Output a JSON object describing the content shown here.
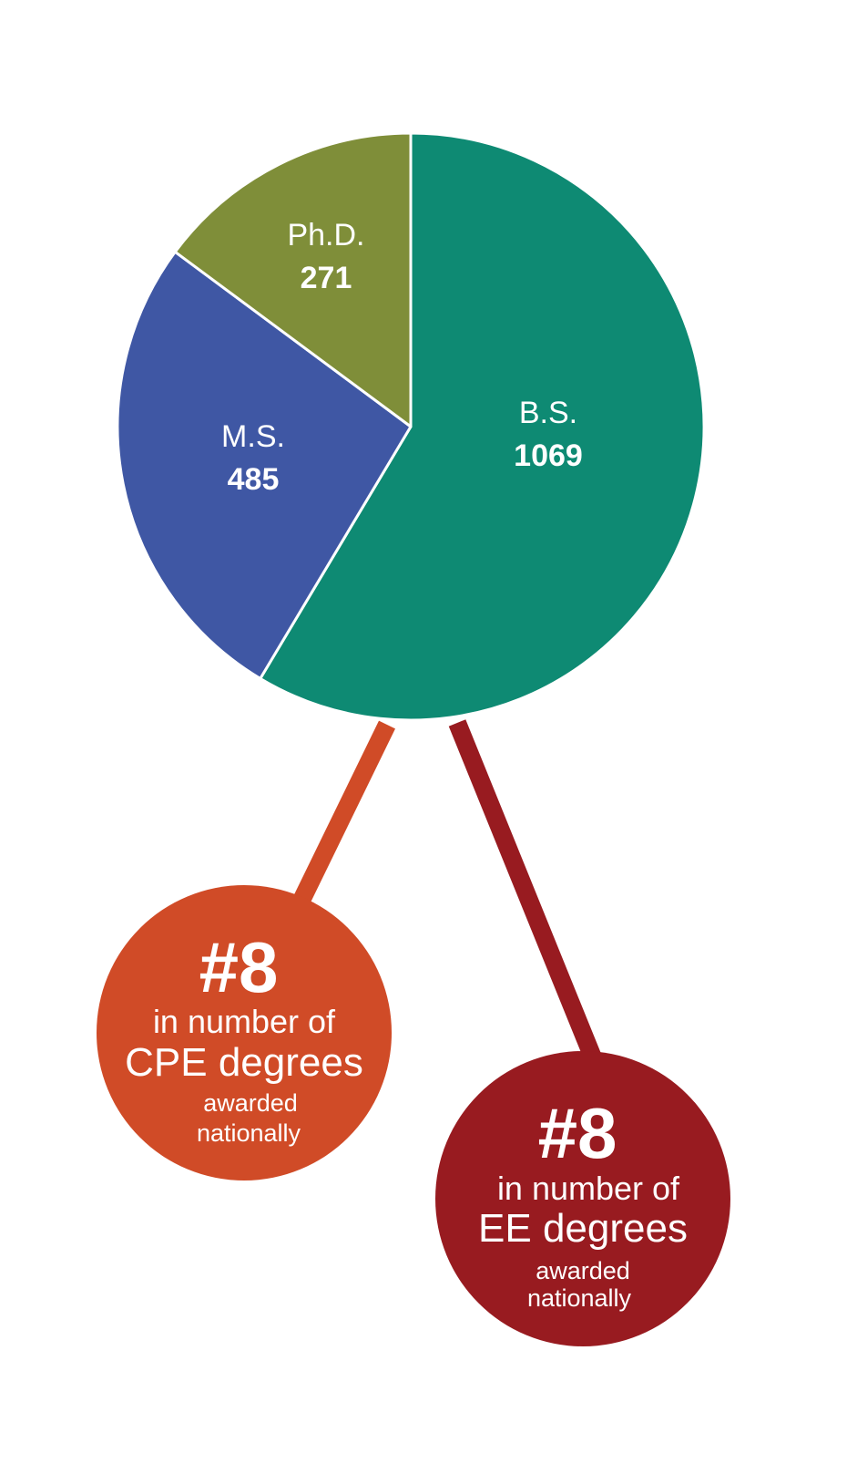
{
  "chart_data": {
    "type": "pie",
    "categories": [
      "B.S.",
      "M.S.",
      "Ph.D."
    ],
    "values": [
      1069,
      485,
      271
    ],
    "colors": [
      "#0e8a73",
      "#3f57a4",
      "#7f8e39"
    ],
    "start_angle_deg": 0,
    "direction": "clockwise",
    "title": "",
    "legend": "none"
  },
  "callouts": [
    {
      "rank": "#8",
      "line1": "in number of",
      "line2": "CPE degrees",
      "line3": "awarded",
      "line4": "nationally",
      "color": "#d04b27"
    },
    {
      "rank": "#8",
      "line1": "in number of",
      "line2": "EE degrees",
      "line3": "awarded",
      "line4": "nationally",
      "color": "#981b20"
    }
  ]
}
